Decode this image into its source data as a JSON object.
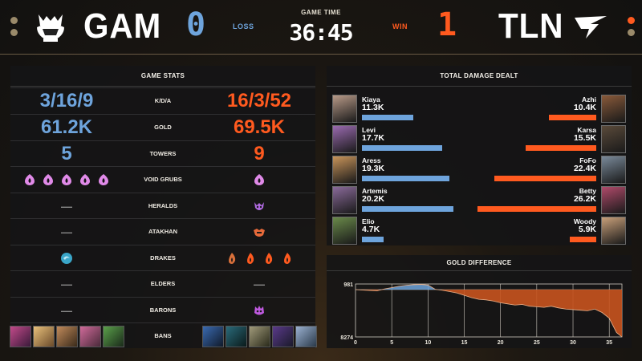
{
  "header": {
    "left_team": "GAM",
    "right_team": "TLN",
    "left_score": "0",
    "right_score": "1",
    "left_result": "LOSS",
    "right_result": "WIN",
    "game_time_label": "GAME TIME",
    "game_time": "36:45",
    "colors": {
      "left": "#6ea4dc",
      "right": "#ff5a1f"
    }
  },
  "stats": {
    "title": "GAME STATS",
    "rows": [
      {
        "label": "K/D/A",
        "left": "3/16/9",
        "right": "16/3/52"
      },
      {
        "label": "GOLD",
        "left": "61.2K",
        "right": "69.5K"
      },
      {
        "label": "TOWERS",
        "left": "5",
        "right": "9"
      },
      {
        "label": "VOID GRUBS",
        "left_count": 5,
        "right_count": 1,
        "icon": "void-grub-icon"
      },
      {
        "label": "HERALDS",
        "left": "—",
        "right_icon": "herald-icon"
      },
      {
        "label": "ATAKHAN",
        "left": "—",
        "right_icon": "atakhan-icon"
      },
      {
        "label": "DRAKES",
        "left_icons": [
          "ocean-drake-icon"
        ],
        "right_icons": [
          "infernal-drake-icon",
          "infernal-drake-icon",
          "infernal-drake-icon",
          "infernal-drake-icon"
        ]
      },
      {
        "label": "ELDERS",
        "left": "—",
        "right": "—"
      },
      {
        "label": "BARONS",
        "left": "—",
        "right_icon": "baron-icon"
      },
      {
        "label": "BANS",
        "left_bans": 5,
        "right_bans": 5
      }
    ]
  },
  "damage": {
    "title": "TOTAL DAMAGE DEALT",
    "max": 26.2,
    "left": [
      {
        "name": "Kiaya",
        "value_label": "11.3K",
        "value": 11.3
      },
      {
        "name": "Levi",
        "value_label": "17.7K",
        "value": 17.7
      },
      {
        "name": "Aress",
        "value_label": "19.3K",
        "value": 19.3
      },
      {
        "name": "Artemis",
        "value_label": "20.2K",
        "value": 20.2
      },
      {
        "name": "Elio",
        "value_label": "4.7K",
        "value": 4.7
      }
    ],
    "right": [
      {
        "name": "Azhi",
        "value_label": "10.4K",
        "value": 10.4
      },
      {
        "name": "Karsa",
        "value_label": "15.5K",
        "value": 15.5
      },
      {
        "name": "FoFo",
        "value_label": "22.4K",
        "value": 22.4
      },
      {
        "name": "Betty",
        "value_label": "26.2K",
        "value": 26.2
      },
      {
        "name": "Woody",
        "value_label": "5.9K",
        "value": 5.9
      }
    ]
  },
  "gold_diff": {
    "title": "GOLD DIFFERENCE",
    "y_top_label": "981",
    "y_bottom_label": "8274",
    "x_ticks": [
      "0",
      "5",
      "10",
      "15",
      "20",
      "25",
      "30",
      "35"
    ],
    "chart_data": {
      "type": "area",
      "xlabel": "",
      "ylabel": "",
      "ylim": [
        -8274,
        981
      ],
      "xlim": [
        0,
        36.75
      ],
      "x": [
        0,
        1,
        2,
        3,
        4,
        5,
        6,
        7,
        8,
        9,
        10,
        11,
        12,
        13,
        14,
        15,
        16,
        17,
        18,
        19,
        20,
        21,
        22,
        23,
        24,
        25,
        26,
        27,
        28,
        29,
        30,
        31,
        32,
        33,
        34,
        35,
        36,
        36.75
      ],
      "values": [
        0,
        -80,
        -150,
        -200,
        120,
        350,
        600,
        750,
        850,
        900,
        800,
        50,
        -120,
        -350,
        -600,
        -1000,
        -1400,
        -1700,
        -1800,
        -2000,
        -2300,
        -2500,
        -2700,
        -2600,
        -2900,
        -3000,
        -3100,
        -2900,
        -3200,
        -3400,
        -3500,
        -3600,
        -3700,
        -3400,
        -4000,
        -5000,
        -7500,
        -8274
      ]
    }
  }
}
